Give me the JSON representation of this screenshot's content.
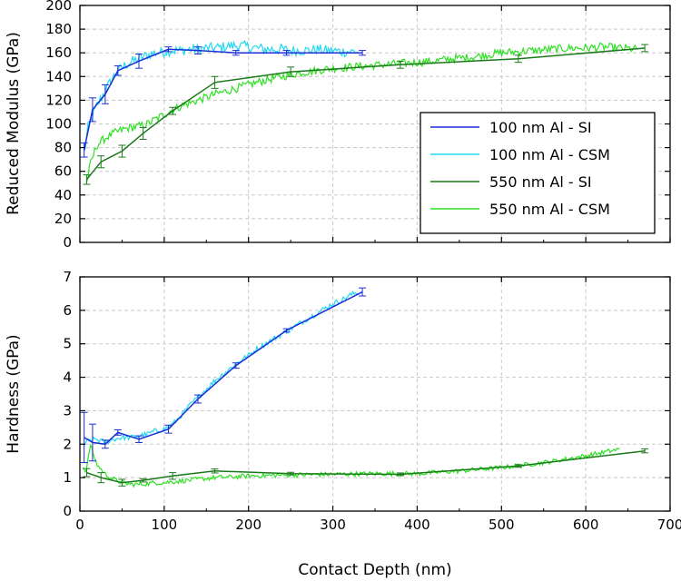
{
  "chart_data": {
    "type": "line",
    "xlabel": "Contact Depth (nm)",
    "xlim": [
      0,
      700
    ],
    "xticks": [
      0,
      100,
      200,
      300,
      400,
      500,
      600,
      700
    ],
    "legend_placement": "right",
    "grid": true,
    "panels": [
      {
        "id": "modulus",
        "ylabel": "Reduced Modulus (GPa)",
        "ylim": [
          0,
          200
        ],
        "yticks": [
          0,
          20,
          40,
          60,
          80,
          100,
          120,
          140,
          160,
          180,
          200
        ],
        "legend": true,
        "series": [
          {
            "name": "100 nm Al - SI",
            "color": "#1a2fd6",
            "kind": "si",
            "x": [
              5,
              15,
              30,
              45,
              70,
              105,
              140,
              185,
              245,
              335
            ],
            "y": [
              78,
              112,
              125,
              145,
              153,
              163,
              162,
              160,
              160,
              160
            ],
            "err": [
              6,
              10,
              8,
              4,
              6,
              2,
              3,
              2,
              2,
              2
            ]
          },
          {
            "name": "100 nm Al - CSM",
            "color": "#22d8f2",
            "kind": "csm",
            "x": [
              5,
              10,
              20,
              30,
              40,
              50,
              60,
              70,
              80,
              90,
              100,
              110,
              120,
              130,
              140,
              150,
              160,
              170,
              180,
              190,
              200,
              210,
              220,
              230,
              240,
              250,
              260,
              270,
              280,
              290,
              300,
              310,
              320,
              330
            ],
            "y": [
              75,
              98,
              115,
              128,
              140,
              148,
              152,
              155,
              158,
              160,
              161,
              162,
              162,
              163,
              163,
              164,
              164,
              165,
              166,
              166,
              165,
              164,
              163,
              163,
              163,
              162,
              162,
              162,
              163,
              162,
              162,
              161,
              161,
              161
            ],
            "noise": 4.5
          },
          {
            "name": "550 nm Al - SI",
            "color": "#1a7a1a",
            "kind": "si",
            "x": [
              8,
              25,
              50,
              75,
              110,
              160,
              250,
              380,
              520,
              670
            ],
            "y": [
              53,
              68,
              77,
              92,
              111,
              135,
              144,
              150,
              155,
              164
            ],
            "err": [
              4,
              5,
              5,
              5,
              3,
              5,
              4,
              3,
              3,
              3
            ]
          },
          {
            "name": "550 nm Al - CSM",
            "color": "#2ee022",
            "kind": "csm",
            "x": [
              8,
              12,
              20,
              30,
              40,
              50,
              60,
              70,
              80,
              90,
              100,
              110,
              120,
              140,
              160,
              180,
              200,
              220,
              240,
              260,
              280,
              300,
              320,
              340,
              360,
              380,
              400,
              420,
              440,
              460,
              480,
              500,
              520,
              540,
              560,
              580,
              600,
              620,
              640,
              660
            ],
            "y": [
              50,
              65,
              82,
              88,
              92,
              95,
              97,
              98,
              100,
              104,
              108,
              112,
              115,
              120,
              125,
              129,
              133,
              137,
              140,
              143,
              145,
              147,
              148,
              149,
              150,
              151,
              152,
              153,
              155,
              156,
              158,
              160,
              161,
              162,
              163,
              164,
              164,
              165,
              164,
              163
            ],
            "noise": 3.5
          }
        ]
      },
      {
        "id": "hardness",
        "ylabel": "Hardness (GPa)",
        "ylim": [
          0,
          7
        ],
        "yticks": [
          0,
          1,
          2,
          3,
          4,
          5,
          6,
          7
        ],
        "legend": false,
        "series": [
          {
            "name": "100 nm Al - SI",
            "color": "#1a2fd6",
            "kind": "si",
            "x": [
              5,
              15,
              30,
              45,
              70,
              105,
              140,
              185,
              245,
              335
            ],
            "y": [
              2.2,
              2.05,
              2.0,
              2.35,
              2.15,
              2.45,
              3.35,
              4.35,
              5.4,
              6.55
            ],
            "err": [
              0.75,
              0.55,
              0.12,
              0.08,
              0.1,
              0.12,
              0.12,
              0.08,
              0.05,
              0.12
            ]
          },
          {
            "name": "100 nm Al - CSM",
            "color": "#22d8f2",
            "kind": "csm",
            "x": [
              5,
              10,
              20,
              30,
              40,
              50,
              60,
              70,
              80,
              90,
              100,
              110,
              120,
              130,
              140,
              150,
              160,
              170,
              180,
              190,
              200,
              210,
              220,
              230,
              240,
              250,
              260,
              270,
              280,
              290,
              300,
              310,
              320,
              330
            ],
            "y": [
              2.0,
              2.1,
              2.15,
              2.05,
              2.15,
              2.2,
              2.2,
              2.25,
              2.3,
              2.4,
              2.45,
              2.6,
              2.85,
              3.15,
              3.4,
              3.65,
              3.9,
              4.1,
              4.3,
              4.5,
              4.65,
              4.85,
              5.0,
              5.15,
              5.3,
              5.45,
              5.6,
              5.75,
              5.9,
              6.05,
              6.2,
              6.3,
              6.45,
              6.55
            ],
            "noise": 0.08
          },
          {
            "name": "550 nm Al - SI",
            "color": "#1a7a1a",
            "kind": "si",
            "x": [
              8,
              25,
              50,
              75,
              110,
              160,
              250,
              380,
              520,
              670
            ],
            "y": [
              1.15,
              1.0,
              0.85,
              0.92,
              1.05,
              1.2,
              1.12,
              1.1,
              1.35,
              1.8
            ],
            "err": [
              0.12,
              0.15,
              0.1,
              0.05,
              0.1,
              0.06,
              0.04,
              0.04,
              0.04,
              0.06
            ]
          },
          {
            "name": "550 nm Al - CSM",
            "color": "#2ee022",
            "kind": "csm",
            "x": [
              3,
              8,
              12,
              20,
              30,
              40,
              50,
              60,
              70,
              80,
              90,
              100,
              120,
              140,
              160,
              180,
              200,
              250,
              300,
              350,
              400,
              450,
              500,
              550,
              600,
              640
            ],
            "y": [
              1.3,
              1.2,
              2.0,
              1.4,
              1.1,
              0.95,
              0.85,
              0.8,
              0.8,
              0.82,
              0.85,
              0.85,
              0.9,
              0.95,
              1.0,
              1.02,
              1.05,
              1.08,
              1.1,
              1.12,
              1.12,
              1.2,
              1.3,
              1.45,
              1.65,
              1.85
            ],
            "noise": 0.07
          }
        ]
      }
    ]
  }
}
